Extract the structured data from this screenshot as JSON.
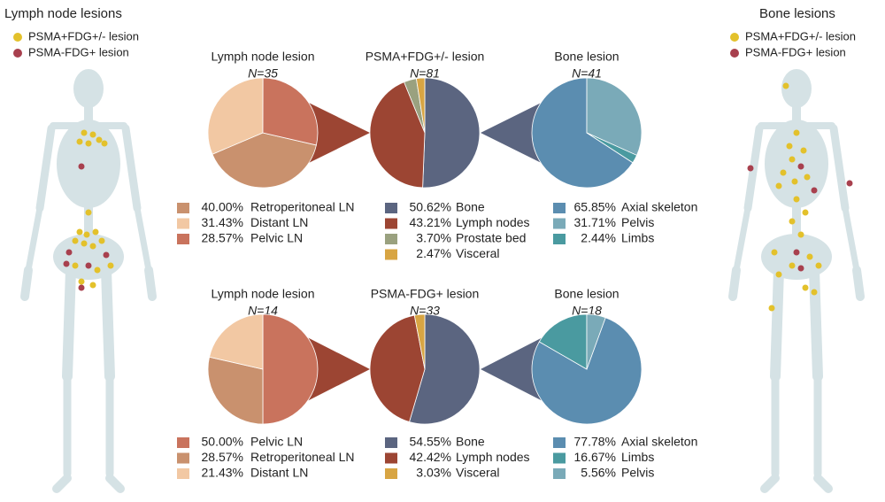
{
  "body_maps": [
    {
      "title": "Lymph node lesions",
      "legend": [
        "PSMA+FDG+/- lesion",
        "PSMA-FDG+ lesion"
      ]
    },
    {
      "title": "Bone lesions",
      "legend": [
        "PSMA+FDG+/- lesion",
        "PSMA-FDG+ lesion"
      ]
    }
  ],
  "chart_data": [
    {
      "type": "pie",
      "title": "Lymph node lesion",
      "subtitle": "N=35",
      "categories": [
        "Retroperitoneal LN",
        "Distant LN",
        "Pelvic LN"
      ],
      "values": [
        40.0,
        31.43,
        28.57
      ],
      "value_labels": [
        "40.00%",
        "31.43%",
        "28.57%"
      ],
      "colors": [
        "#c9916e",
        "#f2c8a3",
        "#c9735d"
      ]
    },
    {
      "type": "pie",
      "title": "PSMA+FDG+/- lesion",
      "subtitle": "N=81",
      "categories": [
        "Bone",
        "Lymph nodes",
        "Prostate bed",
        "Visceral"
      ],
      "values": [
        50.62,
        43.21,
        3.7,
        2.47
      ],
      "value_labels": [
        "50.62%",
        "43.21%",
        "3.70%",
        "2.47%"
      ],
      "colors": [
        "#5b6580",
        "#9c4533",
        "#9aa17f",
        "#d8a543"
      ]
    },
    {
      "type": "pie",
      "title": "Bone lesion",
      "subtitle": "N=41",
      "categories": [
        "Axial skeleton",
        "Pelvis",
        "Limbs"
      ],
      "values": [
        65.85,
        31.71,
        2.44
      ],
      "value_labels": [
        "65.85%",
        "31.71%",
        "2.44%"
      ],
      "colors": [
        "#5b8db0",
        "#7aaab8",
        "#4a9aa0"
      ]
    },
    {
      "type": "pie",
      "title": "Lymph node lesion",
      "subtitle": "N=14",
      "categories": [
        "Pelvic LN",
        "Retroperitoneal LN",
        "Distant LN"
      ],
      "values": [
        50.0,
        28.57,
        21.43
      ],
      "value_labels": [
        "50.00%",
        "28.57%",
        "21.43%"
      ],
      "colors": [
        "#c9735d",
        "#c9916e",
        "#f2c8a3"
      ]
    },
    {
      "type": "pie",
      "title": "PSMA-FDG+ lesion",
      "subtitle": "N=33",
      "categories": [
        "Bone",
        "Lymph nodes",
        "Visceral"
      ],
      "values": [
        54.55,
        42.42,
        3.03
      ],
      "value_labels": [
        "54.55%",
        "42.42%",
        "3.03%"
      ],
      "colors": [
        "#5b6580",
        "#9c4533",
        "#d8a543"
      ]
    },
    {
      "type": "pie",
      "title": "Bone lesion",
      "subtitle": "N=18",
      "categories": [
        "Axial skeleton",
        "Limbs",
        "Pelvis"
      ],
      "values": [
        77.78,
        16.67,
        5.56
      ],
      "value_labels": [
        "77.78%",
        "16.67%",
        "5.56%"
      ],
      "colors": [
        "#5b8db0",
        "#4a9aa0",
        "#7aaab8"
      ]
    }
  ]
}
